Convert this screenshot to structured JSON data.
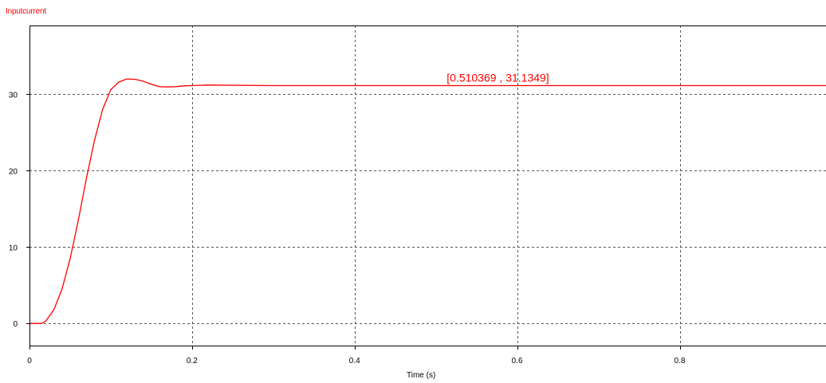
{
  "chart_data": {
    "type": "line",
    "title": "Inputcurrent",
    "xlabel": "Time (s)",
    "ylabel": "",
    "xlim": [
      0,
      0.98
    ],
    "ylim": [
      -3,
      39
    ],
    "x_ticks": [
      {
        "value": 0,
        "label": "0"
      },
      {
        "value": 0.2,
        "label": "0.2"
      },
      {
        "value": 0.4,
        "label": "0.4"
      },
      {
        "value": 0.6,
        "label": "0.6"
      },
      {
        "value": 0.8,
        "label": "0.8"
      }
    ],
    "y_ticks": [
      {
        "value": 0,
        "label": "0"
      },
      {
        "value": 10,
        "label": "10"
      },
      {
        "value": 20,
        "label": "20"
      },
      {
        "value": 30,
        "label": "30"
      }
    ],
    "grid": true,
    "series": [
      {
        "color": "#ff0000",
        "x": [
          0,
          0.015,
          0.02,
          0.03,
          0.04,
          0.05,
          0.06,
          0.07,
          0.08,
          0.09,
          0.1,
          0.11,
          0.12,
          0.13,
          0.14,
          0.15,
          0.16,
          0.17,
          0.18,
          0.19,
          0.2,
          0.22,
          0.3,
          0.5,
          0.98
        ],
        "y": [
          0,
          0,
          0.3,
          1.8,
          4.5,
          8.5,
          13.5,
          19.0,
          24.0,
          28.0,
          30.6,
          31.6,
          32.0,
          31.95,
          31.7,
          31.3,
          31.0,
          30.95,
          31.0,
          31.1,
          31.13,
          31.2,
          31.13,
          31.13,
          31.13
        ]
      }
    ],
    "annotations": [
      {
        "text": "[0.510369 , 31.1349]",
        "x": 0.510369,
        "y": 31.1349
      }
    ]
  }
}
